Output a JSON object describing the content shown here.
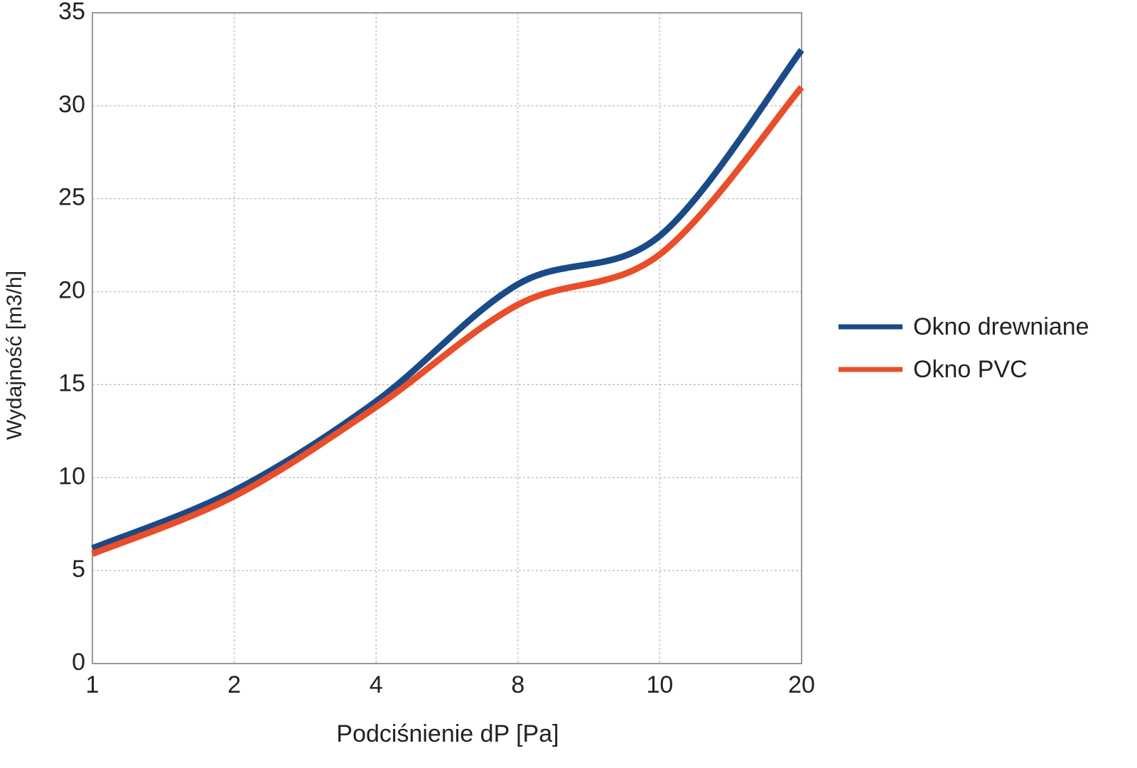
{
  "chart_data": {
    "type": "line",
    "x_label": "Podciśnienie dP [Pa]",
    "y_label": "Wydajność [m3/h]",
    "categories": [
      "1",
      "2",
      "4",
      "8",
      "10",
      "20"
    ],
    "series": [
      {
        "name": "Okno drewniane",
        "color": "#1a4a87",
        "values": [
          6.2,
          9.3,
          14.1,
          20.4,
          23.0,
          33.0
        ]
      },
      {
        "name": "Okno PVC",
        "color": "#e84e2a",
        "values": [
          5.9,
          9.0,
          13.8,
          19.3,
          22.0,
          31.0
        ]
      }
    ],
    "ylim": [
      0,
      35
    ],
    "yticks": [
      0,
      5,
      10,
      15,
      20,
      25,
      30,
      35
    ],
    "grid": true,
    "legend": "right",
    "smooth": true
  }
}
